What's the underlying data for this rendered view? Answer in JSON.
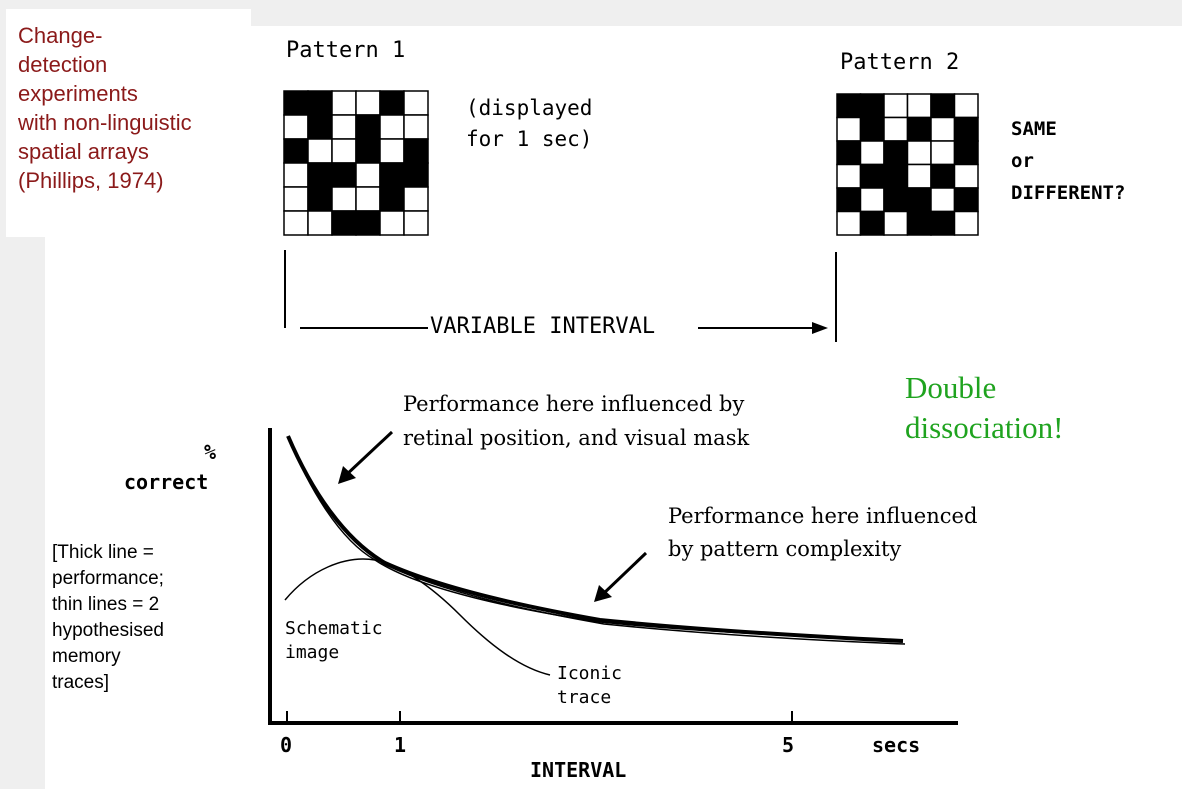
{
  "title": "Change-\ndetection\nexperiments\nwith non-linguistic\nspatial arrays\n(Phillips, 1974)",
  "pattern1": {
    "label": "Pattern 1",
    "note_line1": "(displayed",
    "note_line2": "for 1 sec)",
    "grid": [
      [
        1,
        1,
        0,
        0,
        1,
        0
      ],
      [
        0,
        1,
        0,
        1,
        0,
        0
      ],
      [
        1,
        0,
        0,
        1,
        0,
        1
      ],
      [
        0,
        1,
        1,
        0,
        1,
        1
      ],
      [
        0,
        1,
        0,
        0,
        1,
        0
      ],
      [
        0,
        0,
        1,
        1,
        0,
        0
      ]
    ]
  },
  "pattern2": {
    "label": "Pattern 2",
    "question": [
      "SAME",
      "or",
      "DIFFERENT?"
    ],
    "grid": [
      [
        1,
        1,
        0,
        0,
        1,
        0
      ],
      [
        0,
        1,
        0,
        1,
        0,
        1
      ],
      [
        1,
        0,
        1,
        0,
        0,
        1
      ],
      [
        0,
        1,
        1,
        0,
        1,
        0
      ],
      [
        1,
        0,
        1,
        1,
        0,
        1
      ],
      [
        0,
        1,
        0,
        1,
        1,
        0
      ]
    ]
  },
  "interval_label": "VARIABLE INTERVAL",
  "double_dissociation": "Double\ndissociation!",
  "annotation1": [
    "Performance here influenced by",
    "retinal position, and visual mask"
  ],
  "annotation2": [
    "Performance here influenced",
    "by pattern complexity"
  ],
  "note": "[Thick line =\nperformance;\nthin lines = 2\nhypothesised\nmemory\ntraces]",
  "chart_data": {
    "type": "line",
    "ylabel": [
      "%",
      "correct"
    ],
    "xlabel": "INTERVAL",
    "x_ticks": [
      "0",
      "1",
      "5"
    ],
    "x_unit": "secs",
    "series_labels": {
      "schematic": [
        "Schematic",
        "image"
      ],
      "iconic": [
        "Iconic",
        "trace"
      ]
    }
  }
}
